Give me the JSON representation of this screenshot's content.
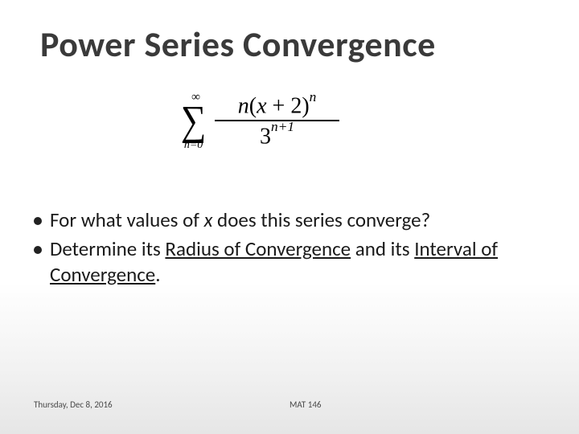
{
  "slide": {
    "title": "Power Series Convergence",
    "title_color": "#3a3a3a",
    "title_fontsize": 44,
    "background_gradient": [
      "#ffffff",
      "#ffffff",
      "#f4f4f4",
      "#e6e6e6"
    ]
  },
  "formula": {
    "type": "summation-fraction",
    "sum_lower": "n=0",
    "sum_upper": "∞",
    "numerator_prefix": "n",
    "numerator_paren": "(x + 2)",
    "numerator_exponent": "n",
    "denominator_base": "3",
    "denominator_exponent": "n+1",
    "font_family": "Times New Roman",
    "color": "#000000",
    "background": "#ffffff"
  },
  "bullets": [
    {
      "parts": [
        {
          "text": "For what values of ",
          "style": "normal"
        },
        {
          "text": "x",
          "style": "italic"
        },
        {
          "text": " does this series converge?",
          "style": "normal"
        }
      ]
    },
    {
      "parts": [
        {
          "text": "Determine its ",
          "style": "normal"
        },
        {
          "text": "Radius of Convergence",
          "style": "underline"
        },
        {
          "text": " and its ",
          "style": "normal"
        },
        {
          "text": "Interval of Convergence",
          "style": "underline"
        },
        {
          "text": ".",
          "style": "normal"
        }
      ]
    }
  ],
  "bullet_style": {
    "fontsize": 25,
    "color": "#1a1a1a",
    "dot_color": "#222222",
    "dot_size": 10
  },
  "footer": {
    "left": "Thursday, Dec 8, 2016",
    "right": "MAT 146",
    "fontsize": 11,
    "color": "#4a4a4a"
  }
}
